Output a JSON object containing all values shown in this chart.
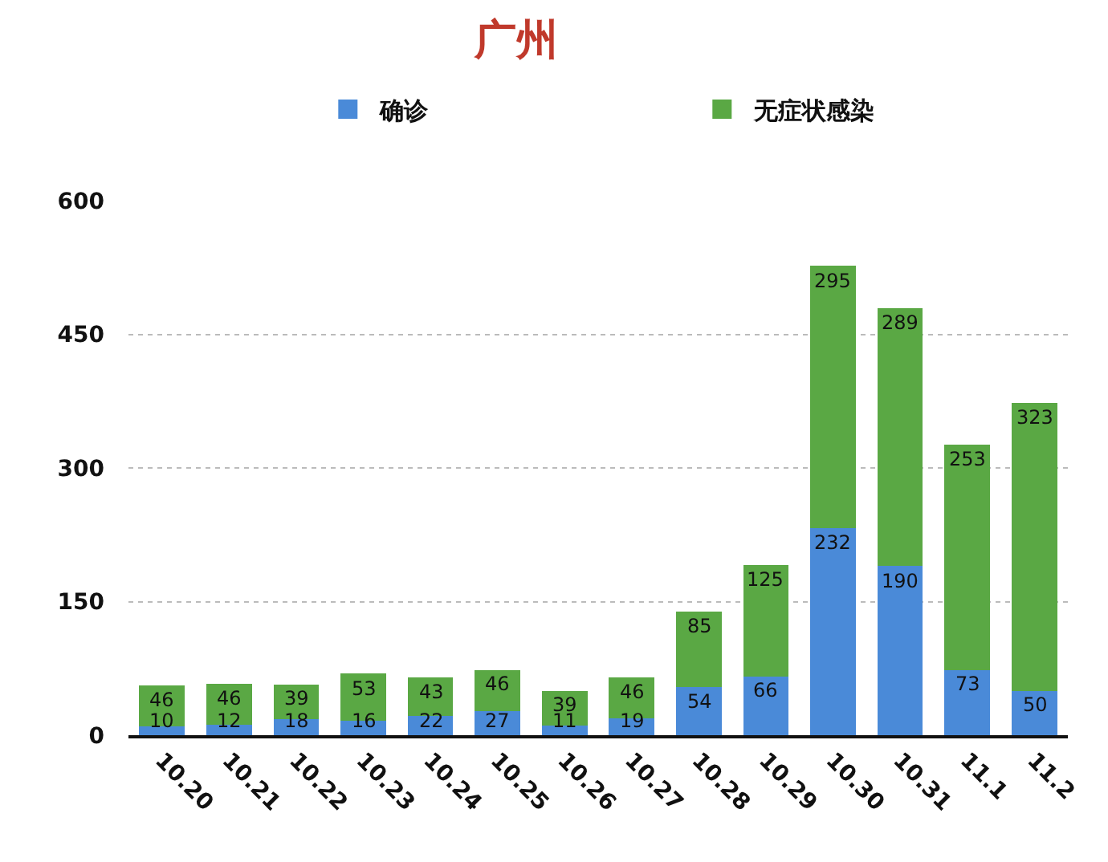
{
  "chart_data": {
    "type": "bar",
    "title": "广州",
    "categories": [
      "10.20",
      "10.21",
      "10.22",
      "10.23",
      "10.24",
      "10.25",
      "10.26",
      "10.27",
      "10.28",
      "10.29",
      "10.30",
      "10.31",
      "11.1",
      "11.2"
    ],
    "series": [
      {
        "name": "确诊",
        "color": "#4a8ad8",
        "values": [
          10,
          12,
          18,
          16,
          22,
          27,
          11,
          19,
          54,
          66,
          232,
          190,
          73,
          50
        ]
      },
      {
        "name": "无症状感染",
        "color": "#5aa844",
        "values": [
          46,
          46,
          39,
          53,
          43,
          46,
          39,
          46,
          85,
          125,
          295,
          289,
          253,
          323
        ]
      }
    ],
    "stacked": true,
    "ylim": [
      0,
      600
    ],
    "yticks": [
      0,
      150,
      300,
      450,
      600
    ],
    "grid": "y",
    "legend": "top",
    "data_labels": true
  }
}
